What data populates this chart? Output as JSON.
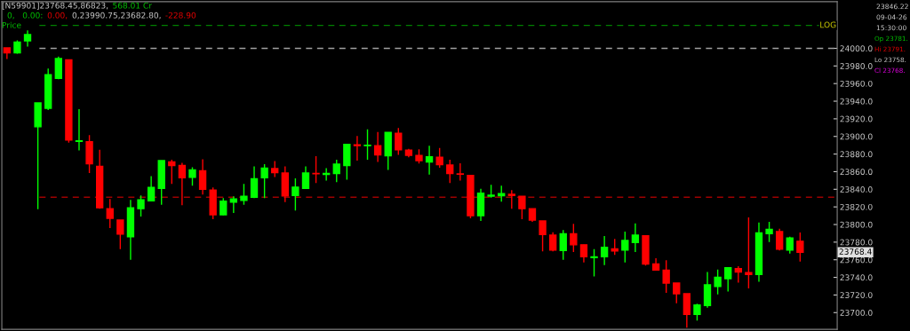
{
  "chart_data": {
    "type": "candlestick",
    "categories": [
      null,
      null,
      null,
      null,
      null,
      null,
      null,
      null,
      null,
      null,
      null,
      null,
      null,
      null,
      null,
      null,
      null,
      null,
      null,
      null,
      null,
      null,
      null,
      null,
      null,
      null,
      null,
      null,
      null,
      null,
      null,
      null,
      null,
      null,
      null,
      null,
      null,
      null,
      null,
      null,
      null,
      null,
      null,
      null,
      null,
      null,
      null,
      null,
      null,
      null,
      null,
      null,
      null,
      null,
      null,
      null,
      null,
      null,
      null,
      null,
      null,
      null,
      null,
      null,
      null,
      null,
      null,
      null,
      null,
      null,
      null,
      null,
      null,
      null,
      null,
      null,
      null,
      null
    ],
    "ohlc": [
      [
        24000.6,
        24000.6,
        23988,
        23995
      ],
      [
        23995,
        24009,
        23994,
        24007
      ],
      [
        24008.5,
        24020.5,
        24002,
        24015.6
      ],
      [
        23911,
        23938,
        23817.5,
        23938
      ],
      [
        23932,
        23977,
        23930,
        23970
      ],
      [
        23966,
        23990.75,
        23965,
        23988.5
      ],
      [
        23987,
        23987,
        23893,
        23896
      ],
      [
        23894.5,
        23931,
        23884,
        23895
      ],
      [
        23894,
        23901.5,
        23858.5,
        23869
      ],
      [
        23866,
        23885,
        23818,
        23819
      ],
      [
        23818,
        23829,
        23796,
        23807
      ],
      [
        23805,
        23805,
        23772,
        23789
      ],
      [
        23786,
        23828,
        23760,
        23819
      ],
      [
        23818,
        23833,
        23809,
        23828
      ],
      [
        23827,
        23855,
        23827,
        23842
      ],
      [
        23841,
        23872.5,
        23822.5,
        23872.5
      ],
      [
        23871,
        23873.5,
        23846,
        23867
      ],
      [
        23867,
        23870,
        23822,
        23853
      ],
      [
        23853.5,
        23865,
        23844,
        23862
      ],
      [
        23861,
        23874,
        23834,
        23840
      ],
      [
        23839,
        23842,
        23806,
        23811
      ],
      [
        23811,
        23830,
        23810.5,
        23826.5
      ],
      [
        23825.5,
        23832,
        23813,
        23829
      ],
      [
        23827.5,
        23846,
        23822.5,
        23832
      ],
      [
        23831,
        23866,
        23830,
        23852
      ],
      [
        23853,
        23868.5,
        23830,
        23864
      ],
      [
        23863.5,
        23872,
        23854,
        23859
      ],
      [
        23858.5,
        23866,
        23825.5,
        23832.5
      ],
      [
        23833,
        23852.5,
        23816,
        23842.5
      ],
      [
        23841,
        23866,
        23841,
        23858.5
      ],
      [
        23858,
        23877.6,
        23847,
        23857.5
      ],
      [
        23856.8,
        23864,
        23850,
        23858
      ],
      [
        23858,
        23873.6,
        23848,
        23868.5
      ],
      [
        23867,
        23891,
        23851,
        23891
      ],
      [
        23890.5,
        23900.5,
        23872.6,
        23889.5
      ],
      [
        23889.5,
        23908,
        23873.6,
        23890
      ],
      [
        23889.5,
        23905,
        23871,
        23879
      ],
      [
        23878,
        23904.5,
        23862,
        23904.5
      ],
      [
        23903.5,
        23909.6,
        23879,
        23884.7
      ],
      [
        23884.4,
        23886,
        23876.3,
        23878.6
      ],
      [
        23878.3,
        23885.4,
        23869.3,
        23872.6
      ],
      [
        23871,
        23889.4,
        23856.8,
        23877
      ],
      [
        23876.3,
        23887,
        23864.5,
        23868
      ],
      [
        23867.5,
        23873.6,
        23847,
        23857.8
      ],
      [
        23857.5,
        23869.6,
        23850,
        23857
      ],
      [
        23855.8,
        23855.8,
        23807,
        23810
      ],
      [
        23810,
        23840.6,
        23804,
        23835.6
      ],
      [
        23832.3,
        23845,
        23830.6,
        23833.3
      ],
      [
        23832.6,
        23844,
        23826,
        23835
      ],
      [
        23834.3,
        23839,
        23818,
        23833
      ],
      [
        23832,
        23832,
        23806,
        23818
      ],
      [
        23818,
        23818,
        23803,
        23805
      ],
      [
        23804,
        23804,
        23769.5,
        23788.6
      ],
      [
        23788,
        23791.2,
        23769.5,
        23771
      ],
      [
        23770.5,
        23793.6,
        23760,
        23789.6
      ],
      [
        23789.6,
        23800.7,
        23768.8,
        23777
      ],
      [
        23777,
        23777,
        23757,
        23763.4
      ],
      [
        23762.4,
        23772,
        23741,
        23763.4
      ],
      [
        23763.4,
        23787,
        23754,
        23774
      ],
      [
        23772.3,
        23783.6,
        23765.5,
        23770
      ],
      [
        23771,
        23792,
        23757,
        23782
      ],
      [
        23779.5,
        23801.3,
        23768.8,
        23788
      ],
      [
        23787.2,
        23787.2,
        23753.3,
        23755
      ],
      [
        23755.3,
        23761.7,
        23748.3,
        23748.3
      ],
      [
        23748.3,
        23759.4,
        23722.4,
        23733.5
      ],
      [
        23733.5,
        23733.5,
        23710.6,
        23721.4
      ],
      [
        23721.4,
        23721.4,
        23682.8,
        23697.9
      ],
      [
        23698,
        23710,
        23691,
        23708.6
      ],
      [
        23708,
        23746,
        23705.6,
        23731.5
      ],
      [
        23729.7,
        23749,
        23720.7,
        23740
      ],
      [
        23738.5,
        23751,
        23724,
        23751
      ],
      [
        23750,
        23752.6,
        23734,
        23746
      ],
      [
        23745.3,
        23808,
        23727.5,
        23743.2
      ],
      [
        23743.2,
        23802.3,
        23735,
        23790.6
      ],
      [
        23789.6,
        23803,
        23780,
        23794.6
      ],
      [
        23792,
        23795.3,
        23770.5,
        23772
      ],
      [
        23771,
        23786.2,
        23767,
        23784.6
      ],
      [
        23781,
        23791,
        23758,
        23768.45
      ]
    ],
    "colors": [
      "#ff0000",
      "#00ff00",
      "#00ff00",
      "#00ff00",
      "#00ff00",
      "#00ff00",
      "#ff0000",
      "#00ff00",
      "#ff0000",
      "#ff0000",
      "#ff0000",
      "#ff0000",
      "#00ff00",
      "#00ff00",
      "#00ff00",
      "#00ff00",
      "#ff0000",
      "#ff0000",
      "#00ff00",
      "#ff0000",
      "#ff0000",
      "#00ff00",
      "#00ff00",
      "#00ff00",
      "#00ff00",
      "#00ff00",
      "#ff0000",
      "#ff0000",
      "#00ff00",
      "#00ff00",
      "#ff0000",
      "#00ff00",
      "#00ff00",
      "#00ff00",
      "#ff0000",
      "#00ff00",
      "#ff0000",
      "#00ff00",
      "#ff0000",
      "#ff0000",
      "#ff0000",
      "#00ff00",
      "#ff0000",
      "#ff0000",
      "#ff0000",
      "#ff0000",
      "#00ff00",
      "#00ff00",
      "#00ff00",
      "#ff0000",
      "#ff0000",
      "#ff0000",
      "#ff0000",
      "#ff0000",
      "#00ff00",
      "#ff0000",
      "#ff0000",
      "#00ff00",
      "#00ff00",
      "#ff0000",
      "#00ff00",
      "#00ff00",
      "#ff0000",
      "#ff0000",
      "#ff0000",
      "#ff0000",
      "#ff0000",
      "#00ff00",
      "#00ff00",
      "#00ff00",
      "#00ff00",
      "#ff0000",
      "#ff0000",
      "#00ff00",
      "#00ff00",
      "#ff0000",
      "#00ff00",
      "#ff0000"
    ],
    "ylim": [
      23681,
      24053
    ],
    "yticks": [
      {
        "value": 23700,
        "label": "23700.0"
      },
      {
        "value": 23720,
        "label": "23720.0"
      },
      {
        "value": 23740,
        "label": "23740.0"
      },
      {
        "value": 23760,
        "label": "23760.0"
      },
      {
        "value": 23780,
        "label": "23780.0"
      },
      {
        "value": 23800,
        "label": "23800.0"
      },
      {
        "value": 23820,
        "label": "23820.0"
      },
      {
        "value": 23840,
        "label": "23840.0"
      },
      {
        "value": 23860,
        "label": "23860.0"
      },
      {
        "value": 23880,
        "label": "23880.0"
      },
      {
        "value": 23900,
        "label": "23900.0"
      },
      {
        "value": 23920,
        "label": "23920.0"
      },
      {
        "value": 23940,
        "label": "23940.0"
      },
      {
        "value": 23960,
        "label": "23960.0"
      },
      {
        "value": 23980,
        "label": "23980.0"
      },
      {
        "value": 24000,
        "label": "24000.0"
      }
    ],
    "tick_labels": "y",
    "grid": false,
    "ref_lines": [
      {
        "axis": "y",
        "value": 24026,
        "label": "LOG",
        "color": "#008000",
        "line_style": "dashed"
      },
      {
        "axis": "y",
        "value": 24000,
        "color": "#a0a0a0",
        "line_style": "dashed"
      },
      {
        "axis": "y",
        "value": 23831,
        "color": "#a00000",
        "line_style": "dashed"
      }
    ],
    "annotations": [
      "[N59901]23768.45,86823,",
      "568.01 Cr",
      "0,   0.00:",
      "0.00,",
      "0,23990.75,23682.80,",
      "-228.90",
      "Price",
      "23846.22",
      "09-04-26",
      "15:30:00",
      "Op 23781.",
      "Hi 23791.",
      "Lo 23758.",
      "Cl 23768.",
      "23768.4"
    ]
  }
}
